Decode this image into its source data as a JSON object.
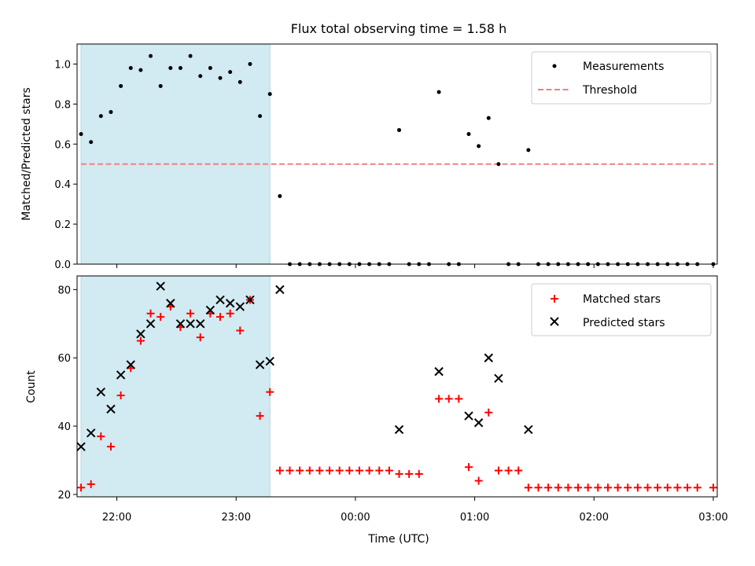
{
  "chart_data": [
    {
      "type": "scatter",
      "title": "Flux total observing time = 1.58 h",
      "xlabel": "",
      "ylabel": "Matched/Predicted stars",
      "xlim": [
        "21:40",
        "03:02"
      ],
      "ylim": [
        0,
        1.1
      ],
      "yticks": [
        "0.0",
        "0.2",
        "0.4",
        "0.6",
        "0.8",
        "1.0"
      ],
      "shaded_interval": [
        "21:42",
        "23:17"
      ],
      "shade_color": "#add8e6",
      "legend_position": "top-right",
      "series": [
        {
          "name": "Measurements",
          "marker": "dot",
          "color": "#000000",
          "points": [
            [
              "21:42",
              0.65
            ],
            [
              "21:47",
              0.61
            ],
            [
              "21:52",
              0.74
            ],
            [
              "21:57",
              0.76
            ],
            [
              "22:02",
              0.89
            ],
            [
              "22:07",
              0.98
            ],
            [
              "22:12",
              0.97
            ],
            [
              "22:17",
              1.04
            ],
            [
              "22:22",
              0.89
            ],
            [
              "22:27",
              0.98
            ],
            [
              "22:32",
              0.98
            ],
            [
              "22:37",
              1.04
            ],
            [
              "22:42",
              0.94
            ],
            [
              "22:47",
              0.98
            ],
            [
              "22:52",
              0.93
            ],
            [
              "22:57",
              0.96
            ],
            [
              "23:02",
              0.91
            ],
            [
              "23:07",
              1.0
            ],
            [
              "23:12",
              0.74
            ],
            [
              "23:17",
              0.85
            ],
            [
              "23:22",
              0.34
            ],
            [
              "23:27",
              0
            ],
            [
              "23:32",
              0
            ],
            [
              "23:37",
              0
            ],
            [
              "23:42",
              0
            ],
            [
              "23:47",
              0
            ],
            [
              "23:52",
              0
            ],
            [
              "23:57",
              0
            ],
            [
              "00:02",
              0
            ],
            [
              "00:07",
              0
            ],
            [
              "00:12",
              0
            ],
            [
              "00:17",
              0
            ],
            [
              "00:22",
              0.67
            ],
            [
              "00:27",
              0
            ],
            [
              "00:32",
              0
            ],
            [
              "00:37",
              0
            ],
            [
              "00:42",
              0.86
            ],
            [
              "00:47",
              0
            ],
            [
              "00:52",
              0
            ],
            [
              "00:57",
              0.65
            ],
            [
              "01:02",
              0.59
            ],
            [
              "01:07",
              0.73
            ],
            [
              "01:12",
              0.5
            ],
            [
              "01:17",
              0
            ],
            [
              "01:22",
              0
            ],
            [
              "01:27",
              0.57
            ],
            [
              "01:32",
              0
            ],
            [
              "01:37",
              0
            ],
            [
              "01:42",
              0
            ],
            [
              "01:47",
              0
            ],
            [
              "01:52",
              0
            ],
            [
              "01:57",
              0
            ],
            [
              "02:02",
              0
            ],
            [
              "02:07",
              0
            ],
            [
              "02:12",
              0
            ],
            [
              "02:17",
              0
            ],
            [
              "02:22",
              0
            ],
            [
              "02:27",
              0
            ],
            [
              "02:32",
              0
            ],
            [
              "02:37",
              0
            ],
            [
              "02:42",
              0
            ],
            [
              "02:47",
              0
            ],
            [
              "02:52",
              0
            ],
            [
              "03:00",
              0
            ]
          ]
        },
        {
          "name": "Threshold",
          "line": "dashed",
          "color": "#f08080",
          "points": [
            [
              "21:42",
              0.5
            ],
            [
              "03:00",
              0.5
            ]
          ]
        }
      ]
    },
    {
      "type": "scatter",
      "title": "",
      "xlabel": "Time (UTC)",
      "ylabel": "Count",
      "xlim": [
        "21:40",
        "03:02"
      ],
      "ylim": [
        19.3,
        84
      ],
      "yticks": [
        "20",
        "40",
        "60",
        "80"
      ],
      "xticks": [
        "22:00",
        "23:00",
        "00:00",
        "01:00",
        "02:00",
        "03:00"
      ],
      "shaded_interval": [
        "21:42",
        "23:17"
      ],
      "shade_color": "#add8e6",
      "legend_position": "top-right",
      "series": [
        {
          "name": "Matched stars",
          "marker": "plus",
          "color": "#ff0000",
          "points": [
            [
              "21:42",
              22
            ],
            [
              "21:47",
              23
            ],
            [
              "21:52",
              37
            ],
            [
              "21:57",
              34
            ],
            [
              "22:02",
              49
            ],
            [
              "22:07",
              57
            ],
            [
              "22:12",
              65
            ],
            [
              "22:17",
              73
            ],
            [
              "22:22",
              72
            ],
            [
              "22:27",
              75
            ],
            [
              "22:32",
              69
            ],
            [
              "22:37",
              73
            ],
            [
              "22:42",
              66
            ],
            [
              "22:47",
              73
            ],
            [
              "22:52",
              72
            ],
            [
              "22:57",
              73
            ],
            [
              "23:02",
              68
            ],
            [
              "23:07",
              77
            ],
            [
              "23:12",
              43
            ],
            [
              "23:17",
              50
            ],
            [
              "23:22",
              27
            ],
            [
              "23:27",
              27
            ],
            [
              "23:32",
              27
            ],
            [
              "23:37",
              27
            ],
            [
              "23:42",
              27
            ],
            [
              "23:47",
              27
            ],
            [
              "23:52",
              27
            ],
            [
              "23:57",
              27
            ],
            [
              "00:02",
              27
            ],
            [
              "00:07",
              27
            ],
            [
              "00:12",
              27
            ],
            [
              "00:17",
              27
            ],
            [
              "00:22",
              26
            ],
            [
              "00:27",
              26
            ],
            [
              "00:32",
              26
            ],
            [
              "00:42",
              48
            ],
            [
              "00:47",
              48
            ],
            [
              "00:52",
              48
            ],
            [
              "00:57",
              28
            ],
            [
              "01:02",
              24
            ],
            [
              "01:07",
              44
            ],
            [
              "01:12",
              27
            ],
            [
              "01:17",
              27
            ],
            [
              "01:22",
              27
            ],
            [
              "01:27",
              22
            ],
            [
              "01:32",
              22
            ],
            [
              "01:37",
              22
            ],
            [
              "01:42",
              22
            ],
            [
              "01:47",
              22
            ],
            [
              "01:52",
              22
            ],
            [
              "01:57",
              22
            ],
            [
              "02:02",
              22
            ],
            [
              "02:07",
              22
            ],
            [
              "02:12",
              22
            ],
            [
              "02:17",
              22
            ],
            [
              "02:22",
              22
            ],
            [
              "02:27",
              22
            ],
            [
              "02:32",
              22
            ],
            [
              "02:37",
              22
            ],
            [
              "02:42",
              22
            ],
            [
              "02:47",
              22
            ],
            [
              "02:52",
              22
            ],
            [
              "03:00",
              22
            ]
          ]
        },
        {
          "name": "Predicted stars",
          "marker": "x",
          "color": "#000000",
          "points": [
            [
              "21:42",
              34
            ],
            [
              "21:47",
              38
            ],
            [
              "21:52",
              50
            ],
            [
              "21:57",
              45
            ],
            [
              "22:02",
              55
            ],
            [
              "22:07",
              58
            ],
            [
              "22:12",
              67
            ],
            [
              "22:17",
              70
            ],
            [
              "22:22",
              81
            ],
            [
              "22:27",
              76
            ],
            [
              "22:32",
              70
            ],
            [
              "22:37",
              70
            ],
            [
              "22:42",
              70
            ],
            [
              "22:47",
              74
            ],
            [
              "22:52",
              77
            ],
            [
              "22:57",
              76
            ],
            [
              "23:02",
              75
            ],
            [
              "23:07",
              77
            ],
            [
              "23:12",
              58
            ],
            [
              "23:17",
              59
            ],
            [
              "23:22",
              80
            ],
            [
              "00:22",
              39
            ],
            [
              "00:42",
              56
            ],
            [
              "00:57",
              43
            ],
            [
              "01:02",
              41
            ],
            [
              "01:07",
              60
            ],
            [
              "01:12",
              54
            ],
            [
              "01:27",
              39
            ]
          ]
        }
      ]
    }
  ]
}
